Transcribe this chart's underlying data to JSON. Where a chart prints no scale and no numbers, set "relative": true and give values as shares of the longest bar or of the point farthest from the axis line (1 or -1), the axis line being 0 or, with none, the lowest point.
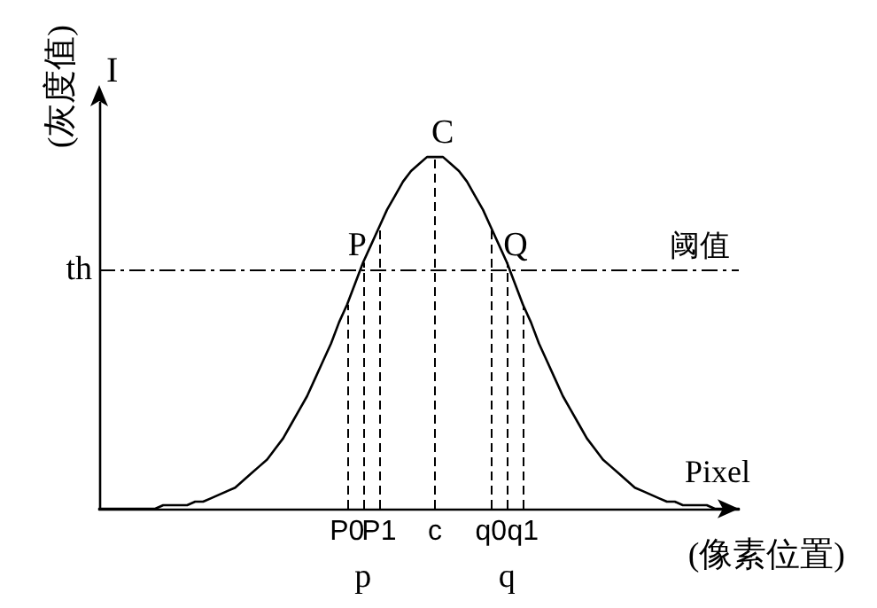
{
  "chart_data": {
    "type": "line",
    "relative": true,
    "xlabel": "Pixel",
    "ylabel": "I",
    "categories": [
      null,
      null,
      null,
      null,
      null,
      null,
      null,
      null,
      null,
      null,
      null,
      null,
      null,
      null,
      null,
      null,
      null,
      null,
      null,
      null,
      null,
      null,
      null,
      null,
      null,
      null,
      null,
      null,
      null,
      null,
      null,
      "P0",
      null,
      "p",
      null,
      "P1",
      null,
      null,
      null,
      null,
      null,
      null,
      "c",
      null,
      null,
      null,
      null,
      null,
      null,
      "q0",
      null,
      "q",
      null,
      "q1",
      null,
      null,
      null,
      null,
      null,
      null,
      null,
      null,
      null,
      null,
      null,
      null,
      null,
      null,
      null,
      null,
      null,
      null,
      null,
      null,
      null,
      null,
      null,
      null,
      null,
      null,
      null
    ],
    "values": [
      0,
      0,
      0,
      0,
      0,
      0,
      0,
      0,
      0.01,
      0.01,
      0.01,
      0.01,
      0.02,
      0.02,
      0.03,
      0.04,
      0.05,
      0.06,
      0.08,
      0.1,
      0.12,
      0.14,
      0.17,
      0.2,
      0.24,
      0.28,
      0.32,
      0.37,
      0.42,
      0.47,
      0.53,
      0.58,
      0.64,
      0.7,
      0.75,
      0.8,
      0.85,
      0.89,
      0.93,
      0.96,
      0.98,
      1,
      1,
      1,
      0.98,
      0.96,
      0.93,
      0.89,
      0.85,
      0.8,
      0.75,
      0.7,
      0.64,
      0.58,
      0.53,
      0.47,
      0.42,
      0.37,
      0.32,
      0.28,
      0.24,
      0.2,
      0.17,
      0.14,
      0.12,
      0.1,
      0.08,
      0.06,
      0.05,
      0.04,
      0.03,
      0.02,
      0.02,
      0.01,
      0.01,
      0.01,
      0.01,
      0,
      0,
      0,
      0
    ],
    "color": "#000000",
    "marker": "none",
    "line_style": "solid",
    "ref_lines": [
      {
        "axis": "y",
        "value": 0.68,
        "label": "阈值",
        "line_style": "dashdot"
      },
      {
        "axis": "x",
        "value": "P0",
        "line_style": "dashed"
      },
      {
        "axis": "x",
        "value": "p",
        "line_style": "dashed"
      },
      {
        "axis": "x",
        "value": "P1",
        "line_style": "dashed"
      },
      {
        "axis": "x",
        "value": "c",
        "line_style": "dashed"
      },
      {
        "axis": "x",
        "value": "q0",
        "line_style": "dashed"
      },
      {
        "axis": "x",
        "value": "q",
        "line_style": "dashed"
      },
      {
        "axis": "x",
        "value": "q1",
        "line_style": "dashed"
      }
    ],
    "annotations": [
      "(灰度值)",
      "(像素位置)",
      "th",
      {
        "text": "C",
        "x": "c",
        "y": 1
      },
      {
        "text": "P",
        "x": "p",
        "y": 0.68
      },
      {
        "text": "Q",
        "x": "q",
        "y": 0.68
      }
    ],
    "grid": false
  }
}
